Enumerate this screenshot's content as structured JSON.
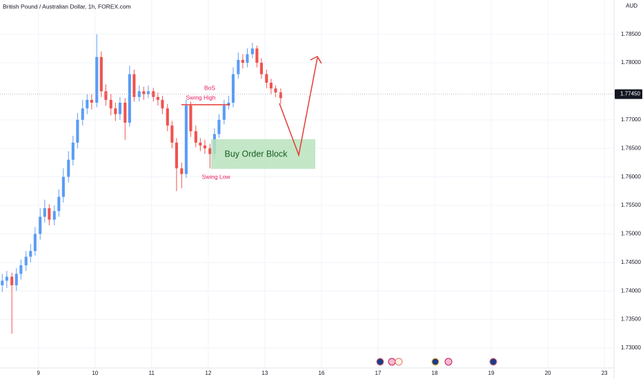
{
  "chart_data": {
    "type": "candlestick",
    "title": "British Pound / Australian Dollar, 1h, FOREX.com",
    "currency_label": "AUD",
    "up_color": "#5b9cf6",
    "down_color": "#ef5350",
    "xlim": [
      8.32,
      19.17
    ],
    "xticks": [
      9,
      10,
      11,
      12,
      13,
      {
        "value": 14,
        "label": "16"
      },
      {
        "value": 15,
        "label": "17"
      },
      {
        "value": 16,
        "label": "18"
      },
      {
        "value": 17,
        "label": "19"
      },
      {
        "value": 18,
        "label": "20"
      },
      {
        "value": 19,
        "label": "23"
      }
    ],
    "ylim": [
      1.7265,
      1.791
    ],
    "yticks": [
      {
        "value": 1.73,
        "label": "1.73000"
      },
      {
        "value": 1.735,
        "label": "1.73500"
      },
      {
        "value": 1.74,
        "label": "1.74000"
      },
      {
        "value": 1.745,
        "label": "1.74500"
      },
      {
        "value": 1.75,
        "label": "1.75000"
      },
      {
        "value": 1.755,
        "label": "1.75500"
      },
      {
        "value": 1.76,
        "label": "1.76000"
      },
      {
        "value": 1.765,
        "label": "1.76500"
      },
      {
        "value": 1.77,
        "label": "1.77000"
      },
      {
        "value": 1.78,
        "label": "1.78000"
      },
      {
        "value": 1.785,
        "label": "1.78500"
      }
    ],
    "last_price": {
      "value": 1.7745,
      "label": "1.77450"
    },
    "candles": {
      "x": [
        8.36,
        8.44,
        8.53,
        8.61,
        8.69,
        8.78,
        8.86,
        8.94,
        9.03,
        9.11,
        9.19,
        9.28,
        9.36,
        9.44,
        9.53,
        9.61,
        9.69,
        9.78,
        9.86,
        9.94,
        10.03,
        10.11,
        10.19,
        10.28,
        10.36,
        10.44,
        10.53,
        10.61,
        10.69,
        10.78,
        10.86,
        10.94,
        11.03,
        11.11,
        11.19,
        11.28,
        11.36,
        11.44,
        11.53,
        11.61,
        11.69,
        11.78,
        11.86,
        11.94,
        12.03,
        12.11,
        12.19,
        12.28,
        12.36,
        12.44,
        12.53,
        12.61,
        12.69,
        12.78,
        12.86,
        12.94,
        13.03,
        13.11,
        13.19,
        13.28
      ],
      "open": [
        1.741,
        1.7418,
        1.7425,
        1.741,
        1.743,
        1.7445,
        1.746,
        1.747,
        1.75,
        1.753,
        1.7545,
        1.7525,
        1.754,
        1.7565,
        1.76,
        1.763,
        1.766,
        1.77,
        1.772,
        1.7735,
        1.773,
        1.781,
        1.775,
        1.7735,
        1.772,
        1.771,
        1.773,
        1.7695,
        1.778,
        1.774,
        1.775,
        1.7745,
        1.775,
        1.774,
        1.7735,
        1.772,
        1.769,
        1.766,
        1.7615,
        1.7605,
        1.7725,
        1.768,
        1.766,
        1.7655,
        1.765,
        1.764,
        1.7675,
        1.77,
        1.7725,
        1.773,
        1.778,
        1.7805,
        1.78,
        1.7815,
        1.7825,
        1.78,
        1.778,
        1.7765,
        1.7755,
        1.7748
      ],
      "high": [
        1.743,
        1.7435,
        1.7432,
        1.744,
        1.7455,
        1.747,
        1.7482,
        1.7512,
        1.7545,
        1.756,
        1.7552,
        1.755,
        1.7578,
        1.7615,
        1.7645,
        1.7672,
        1.7712,
        1.7735,
        1.7745,
        1.7745,
        1.785,
        1.782,
        1.7762,
        1.7745,
        1.773,
        1.774,
        1.7738,
        1.7795,
        1.7788,
        1.776,
        1.7758,
        1.776,
        1.7756,
        1.7748,
        1.7742,
        1.7728,
        1.7698,
        1.7668,
        1.7625,
        1.7735,
        1.7732,
        1.769,
        1.7668,
        1.7665,
        1.7658,
        1.7685,
        1.771,
        1.7735,
        1.7742,
        1.7792,
        1.7818,
        1.7815,
        1.7825,
        1.7835,
        1.783,
        1.7808,
        1.7788,
        1.7772,
        1.776,
        1.7755
      ],
      "low": [
        1.7398,
        1.7405,
        1.7325,
        1.74,
        1.742,
        1.7435,
        1.745,
        1.7462,
        1.749,
        1.752,
        1.7515,
        1.7515,
        1.753,
        1.7555,
        1.759,
        1.762,
        1.765,
        1.769,
        1.771,
        1.7718,
        1.7722,
        1.774,
        1.7725,
        1.7708,
        1.7698,
        1.77,
        1.7665,
        1.7688,
        1.7732,
        1.7732,
        1.7735,
        1.7738,
        1.7732,
        1.7725,
        1.771,
        1.768,
        1.765,
        1.7575,
        1.758,
        1.7598,
        1.767,
        1.7652,
        1.7645,
        1.764,
        1.7615,
        1.7632,
        1.7668,
        1.7692,
        1.7718,
        1.7722,
        1.7772,
        1.779,
        1.7792,
        1.7808,
        1.7792,
        1.7772,
        1.7755,
        1.7745,
        1.774,
        1.7728
      ],
      "close": [
        1.7418,
        1.7425,
        1.741,
        1.743,
        1.7445,
        1.746,
        1.747,
        1.75,
        1.753,
        1.7545,
        1.7525,
        1.754,
        1.7565,
        1.76,
        1.763,
        1.766,
        1.77,
        1.772,
        1.7735,
        1.773,
        1.781,
        1.775,
        1.7735,
        1.772,
        1.771,
        1.773,
        1.7695,
        1.778,
        1.774,
        1.775,
        1.7745,
        1.775,
        1.774,
        1.7735,
        1.772,
        1.769,
        1.766,
        1.7615,
        1.7605,
        1.7725,
        1.768,
        1.766,
        1.7655,
        1.765,
        1.764,
        1.7675,
        1.77,
        1.7725,
        1.773,
        1.778,
        1.7805,
        1.78,
        1.7815,
        1.7825,
        1.78,
        1.778,
        1.7765,
        1.7755,
        1.7748,
        1.7738
      ]
    },
    "annotations": {
      "bos": "BoS",
      "swing_high": "Swing High",
      "swing_low": "Swing Low",
      "order_block": "Buy Order Block"
    }
  }
}
